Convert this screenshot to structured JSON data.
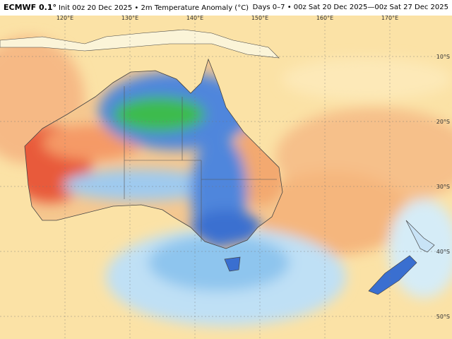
{
  "header": {
    "model": "ECMWF 0.1°",
    "init": "Init 00z 20 Dec 2025 • 2m Temperature Anomaly (°C)",
    "period": "Days 0–7 • 00z Sat 20 Dec 2025—00z Sat 27 Dec 2025"
  },
  "longitude_labels": [
    "120°E",
    "130°E",
    "140°E",
    "150°E",
    "160°E",
    "170°E"
  ],
  "latitude_labels": [
    "10°S",
    "20°S",
    "30°S",
    "40°S",
    "50°S"
  ]
}
